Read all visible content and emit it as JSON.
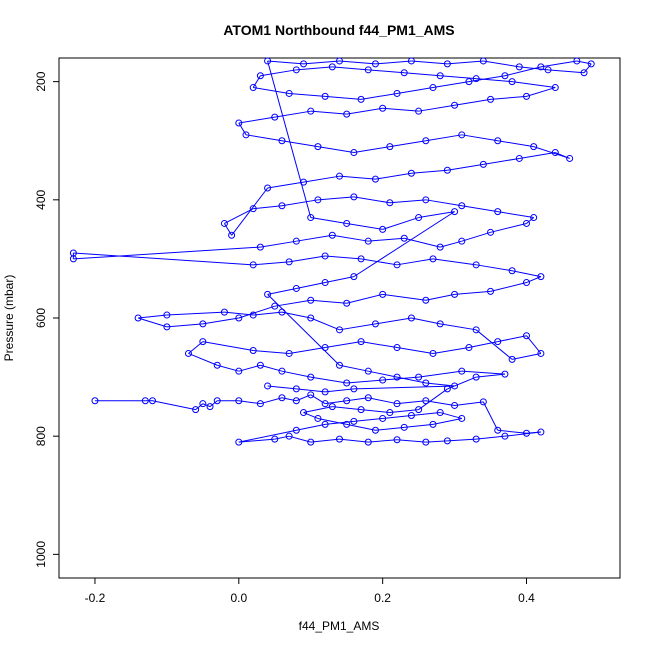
{
  "chart_data": {
    "type": "scatter",
    "title": "ATOM1 Northbound f44_PM1_AMS",
    "xlabel": "f44_PM1_AMS",
    "ylabel": "Pressure (mbar)",
    "xlim": [
      -0.25,
      0.53
    ],
    "ylim": [
      1040,
      160
    ],
    "y_reversed": true,
    "x_ticks": [
      -0.2,
      0.0,
      0.2,
      0.4
    ],
    "x_tick_labels": [
      "-0.2",
      "0.0",
      "0.2",
      "0.4"
    ],
    "y_ticks": [
      200,
      400,
      600,
      800,
      1000
    ],
    "y_tick_labels": [
      "200",
      "400",
      "600",
      "800",
      "1000"
    ],
    "grid": false,
    "legend": "none",
    "color": "#0000ff",
    "marker": "open-circle",
    "connected": true,
    "series": [
      {
        "points": [
          [
            -0.2,
            740
          ],
          [
            -0.13,
            740
          ],
          [
            -0.12,
            740
          ],
          [
            -0.06,
            755
          ],
          [
            -0.05,
            745
          ],
          [
            -0.04,
            750
          ],
          [
            -0.03,
            740
          ],
          [
            0.0,
            740
          ],
          [
            0.03,
            745
          ],
          [
            0.06,
            735
          ],
          [
            0.08,
            740
          ],
          [
            0.1,
            730
          ],
          [
            0.12,
            745
          ],
          [
            0.15,
            740
          ],
          [
            0.18,
            735
          ],
          [
            0.22,
            745
          ],
          [
            0.26,
            740
          ],
          [
            0.3,
            748
          ],
          [
            0.34,
            742
          ],
          [
            0.36,
            790
          ],
          [
            0.4,
            795
          ],
          [
            0.42,
            793
          ],
          [
            0.37,
            800
          ],
          [
            0.33,
            805
          ],
          [
            0.29,
            808
          ],
          [
            0.26,
            810
          ],
          [
            0.22,
            806
          ],
          [
            0.18,
            810
          ],
          [
            0.14,
            805
          ],
          [
            0.1,
            810
          ],
          [
            0.07,
            800
          ],
          [
            0.05,
            805
          ],
          [
            0.0,
            810
          ],
          [
            0.08,
            790
          ],
          [
            0.12,
            780
          ],
          [
            0.16,
            775
          ],
          [
            0.2,
            770
          ],
          [
            0.24,
            765
          ],
          [
            0.28,
            760
          ],
          [
            0.31,
            770
          ],
          [
            0.27,
            780
          ],
          [
            0.23,
            785
          ],
          [
            0.19,
            790
          ],
          [
            0.15,
            780
          ],
          [
            0.11,
            770
          ],
          [
            0.09,
            760
          ],
          [
            0.13,
            750
          ],
          [
            0.17,
            755
          ],
          [
            0.21,
            760
          ],
          [
            0.25,
            755
          ],
          [
            0.29,
            720
          ],
          [
            0.33,
            700
          ],
          [
            0.37,
            695
          ],
          [
            0.31,
            690
          ],
          [
            0.25,
            700
          ],
          [
            0.2,
            705
          ],
          [
            0.15,
            710
          ],
          [
            0.1,
            700
          ],
          [
            0.06,
            690
          ],
          [
            0.03,
            680
          ],
          [
            0.0,
            690
          ],
          [
            -0.03,
            680
          ],
          [
            -0.07,
            660
          ],
          [
            -0.05,
            640
          ],
          [
            0.02,
            655
          ],
          [
            0.07,
            660
          ],
          [
            0.12,
            650
          ],
          [
            0.17,
            640
          ],
          [
            0.22,
            650
          ],
          [
            0.27,
            660
          ],
          [
            0.32,
            650
          ],
          [
            0.36,
            640
          ],
          [
            0.4,
            630
          ],
          [
            0.42,
            660
          ],
          [
            0.38,
            670
          ],
          [
            0.33,
            620
          ],
          [
            0.28,
            610
          ],
          [
            0.24,
            600
          ],
          [
            0.19,
            610
          ],
          [
            0.14,
            620
          ],
          [
            0.1,
            600
          ],
          [
            0.06,
            590
          ],
          [
            0.02,
            595
          ],
          [
            -0.02,
            590
          ],
          [
            -0.1,
            595
          ],
          [
            -0.14,
            600
          ],
          [
            -0.1,
            615
          ],
          [
            -0.05,
            610
          ],
          [
            0.0,
            600
          ],
          [
            0.05,
            580
          ],
          [
            0.1,
            570
          ],
          [
            0.15,
            575
          ],
          [
            0.2,
            560
          ],
          [
            0.26,
            570
          ],
          [
            0.3,
            560
          ],
          [
            0.35,
            555
          ],
          [
            0.4,
            540
          ],
          [
            0.42,
            530
          ],
          [
            0.38,
            520
          ],
          [
            0.33,
            510
          ],
          [
            0.27,
            500
          ],
          [
            0.22,
            510
          ],
          [
            0.17,
            500
          ],
          [
            0.12,
            495
          ],
          [
            0.07,
            505
          ],
          [
            0.02,
            510
          ],
          [
            -0.23,
            490
          ],
          [
            -0.23,
            500
          ],
          [
            0.03,
            480
          ],
          [
            0.08,
            470
          ],
          [
            0.13,
            460
          ],
          [
            0.18,
            470
          ],
          [
            0.23,
            465
          ],
          [
            0.28,
            480
          ],
          [
            0.31,
            470
          ],
          [
            0.35,
            455
          ],
          [
            0.4,
            440
          ],
          [
            0.41,
            430
          ],
          [
            0.36,
            420
          ],
          [
            0.31,
            410
          ],
          [
            0.26,
            400
          ],
          [
            0.21,
            405
          ],
          [
            0.16,
            395
          ],
          [
            0.11,
            400
          ],
          [
            0.06,
            410
          ],
          [
            0.02,
            415
          ],
          [
            -0.02,
            440
          ],
          [
            -0.01,
            460
          ],
          [
            0.04,
            380
          ],
          [
            0.09,
            370
          ],
          [
            0.14,
            360
          ],
          [
            0.19,
            365
          ],
          [
            0.24,
            355
          ],
          [
            0.29,
            350
          ],
          [
            0.34,
            340
          ],
          [
            0.39,
            330
          ],
          [
            0.44,
            320
          ],
          [
            0.46,
            330
          ],
          [
            0.41,
            310
          ],
          [
            0.36,
            300
          ],
          [
            0.31,
            290
          ],
          [
            0.26,
            300
          ],
          [
            0.21,
            310
          ],
          [
            0.16,
            320
          ],
          [
            0.11,
            310
          ],
          [
            0.06,
            300
          ],
          [
            0.01,
            290
          ],
          [
            0.0,
            270
          ],
          [
            0.05,
            260
          ],
          [
            0.1,
            250
          ],
          [
            0.15,
            255
          ],
          [
            0.2,
            245
          ],
          [
            0.25,
            250
          ],
          [
            0.3,
            240
          ],
          [
            0.35,
            230
          ],
          [
            0.4,
            225
          ],
          [
            0.44,
            210
          ],
          [
            0.38,
            200
          ],
          [
            0.33,
            195
          ],
          [
            0.28,
            190
          ],
          [
            0.23,
            185
          ],
          [
            0.18,
            180
          ],
          [
            0.13,
            175
          ],
          [
            0.08,
            180
          ],
          [
            0.03,
            190
          ],
          [
            0.02,
            210
          ],
          [
            0.07,
            220
          ],
          [
            0.12,
            225
          ],
          [
            0.17,
            230
          ],
          [
            0.22,
            220
          ],
          [
            0.27,
            210
          ],
          [
            0.32,
            200
          ],
          [
            0.37,
            190
          ],
          [
            0.42,
            175
          ],
          [
            0.47,
            165
          ],
          [
            0.49,
            170
          ],
          [
            0.48,
            185
          ],
          [
            0.43,
            180
          ],
          [
            0.39,
            175
          ],
          [
            0.34,
            165
          ],
          [
            0.29,
            170
          ],
          [
            0.24,
            165
          ],
          [
            0.19,
            170
          ],
          [
            0.14,
            165
          ],
          [
            0.09,
            170
          ],
          [
            0.04,
            165
          ],
          [
            0.1,
            430
          ],
          [
            0.15,
            440
          ],
          [
            0.2,
            450
          ],
          [
            0.25,
            430
          ],
          [
            0.3,
            420
          ],
          [
            0.16,
            530
          ],
          [
            0.12,
            540
          ],
          [
            0.08,
            550
          ],
          [
            0.04,
            560
          ],
          [
            0.14,
            680
          ],
          [
            0.18,
            690
          ],
          [
            0.22,
            700
          ],
          [
            0.26,
            710
          ],
          [
            0.3,
            715
          ],
          [
            0.16,
            720
          ],
          [
            0.12,
            725
          ],
          [
            0.08,
            720
          ],
          [
            0.04,
            715
          ]
        ]
      }
    ]
  }
}
